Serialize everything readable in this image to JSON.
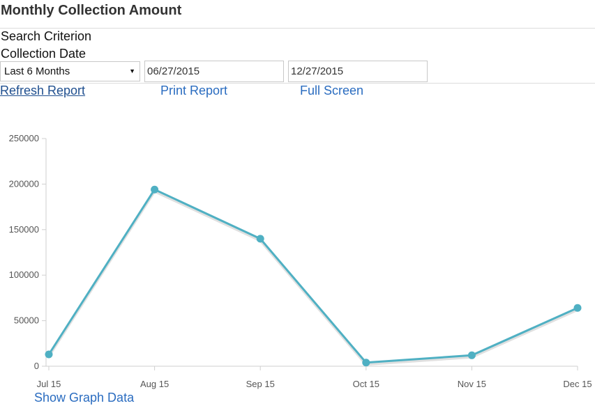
{
  "page": {
    "title": "Monthly Collection Amount"
  },
  "search": {
    "heading": "Search Criterion",
    "field_label": "Collection Date",
    "range_select": {
      "selected": "Last 6 Months"
    },
    "start_date": "06/27/2015",
    "end_date": "12/27/2015"
  },
  "actions": {
    "refresh": "Refresh Report",
    "print": "Print Report",
    "fullscreen": "Full Screen"
  },
  "chart_data": {
    "type": "line",
    "categories": [
      "Jul 15",
      "Aug 15",
      "Sep 15",
      "Oct 15",
      "Nov 15",
      "Dec 15"
    ],
    "values": [
      13000,
      194000,
      140000,
      4000,
      12000,
      64000
    ],
    "yticks": [
      0,
      50000,
      100000,
      150000,
      200000,
      250000
    ],
    "ylim": [
      0,
      250000
    ],
    "title": "",
    "xlabel": "",
    "ylabel": "",
    "color": "#4fb0c3",
    "grid": false
  },
  "footer": {
    "show_graph_data": "Show Graph Data"
  }
}
